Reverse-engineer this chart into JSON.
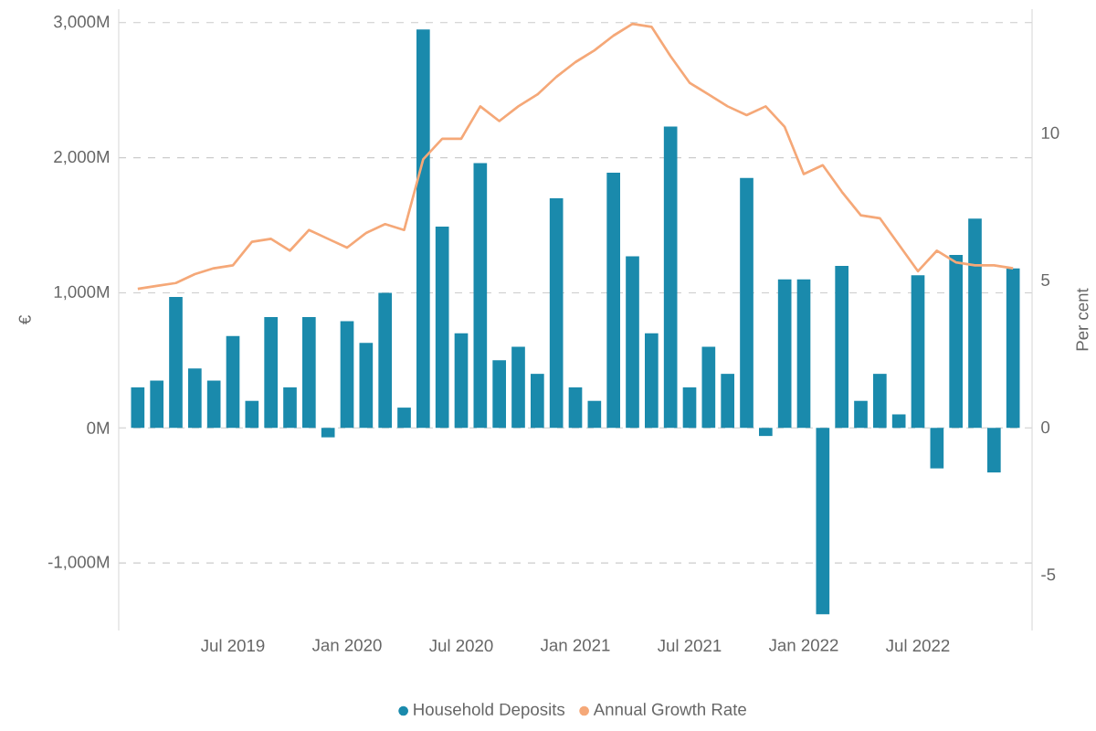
{
  "chart_data": {
    "type": "bar",
    "ylabel": "€",
    "y2label": "Per cent",
    "x": [
      "2019-02",
      "2019-03",
      "2019-04",
      "2019-05",
      "2019-06",
      "2019-07",
      "2019-08",
      "2019-09",
      "2019-10",
      "2019-11",
      "2019-12",
      "2020-01",
      "2020-02",
      "2020-03",
      "2020-04",
      "2020-05",
      "2020-06",
      "2020-07",
      "2020-08",
      "2020-09",
      "2020-10",
      "2020-11",
      "2020-12",
      "2021-01",
      "2021-02",
      "2021-03",
      "2021-04",
      "2021-05",
      "2021-06",
      "2021-07",
      "2021-08",
      "2021-09",
      "2021-10",
      "2021-11",
      "2021-12",
      "2022-01",
      "2022-02",
      "2022-03",
      "2022-04",
      "2022-05",
      "2022-06",
      "2022-07",
      "2022-08",
      "2022-09",
      "2022-10",
      "2022-11",
      "2022-12"
    ],
    "series": [
      {
        "name": "Household Deposits",
        "color": "#1a8aac",
        "values": [
          300,
          350,
          970,
          440,
          350,
          680,
          200,
          820,
          300,
          820,
          -70,
          790,
          630,
          1000,
          150,
          2950,
          1490,
          700,
          1960,
          500,
          600,
          400,
          1700,
          300,
          200,
          1890,
          1270,
          700,
          2230,
          300,
          600,
          400,
          1850,
          -60,
          1100,
          1100,
          -1380,
          1200,
          200,
          400,
          100,
          1130,
          -300,
          1280,
          1550,
          -330,
          1180
        ]
      },
      {
        "name": "Annual Growth Rate",
        "type": "line",
        "axis": "y2",
        "color": "#f5a878",
        "values": [
          4.7,
          4.8,
          4.9,
          5.2,
          5.4,
          5.5,
          6.3,
          6.4,
          6.0,
          6.7,
          6.4,
          6.1,
          6.6,
          6.9,
          6.7,
          9.1,
          9.8,
          9.8,
          10.9,
          10.4,
          10.9,
          11.3,
          11.9,
          12.4,
          12.8,
          13.3,
          13.7,
          13.6,
          12.6,
          11.7,
          11.3,
          10.9,
          10.6,
          10.9,
          10.2,
          8.6,
          8.9,
          8.0,
          7.2,
          7.1,
          6.2,
          5.3,
          6.0,
          5.6,
          5.5,
          5.5,
          5.4
        ]
      }
    ],
    "xlim": [
      "2019-01",
      "2023-01"
    ],
    "xticks": [
      {
        "value": "2019-07",
        "label": "Jul 2019"
      },
      {
        "value": "2020-01",
        "label": "Jan 2020"
      },
      {
        "value": "2020-07",
        "label": "Jul 2020"
      },
      {
        "value": "2021-01",
        "label": "Jan 2021"
      },
      {
        "value": "2021-07",
        "label": "Jul 2021"
      },
      {
        "value": "2022-01",
        "label": "Jan 2022"
      },
      {
        "value": "2022-07",
        "label": "Jul 2022"
      }
    ],
    "ylim": [
      -1500,
      3100
    ],
    "yticks": [
      {
        "value": -1000,
        "label": "-1,000M"
      },
      {
        "value": 0,
        "label": "0M"
      },
      {
        "value": 1000,
        "label": "1,000M"
      },
      {
        "value": 2000,
        "label": "2,000M"
      },
      {
        "value": 3000,
        "label": "3,000M"
      }
    ],
    "y2lim": [
      -6.9,
      14.2
    ],
    "y2ticks": [
      {
        "value": -5,
        "label": "-5"
      },
      {
        "value": 0,
        "label": "0"
      },
      {
        "value": 5,
        "label": "5"
      },
      {
        "value": 10,
        "label": "10"
      }
    ],
    "grid": "y",
    "legend": "bottom"
  }
}
